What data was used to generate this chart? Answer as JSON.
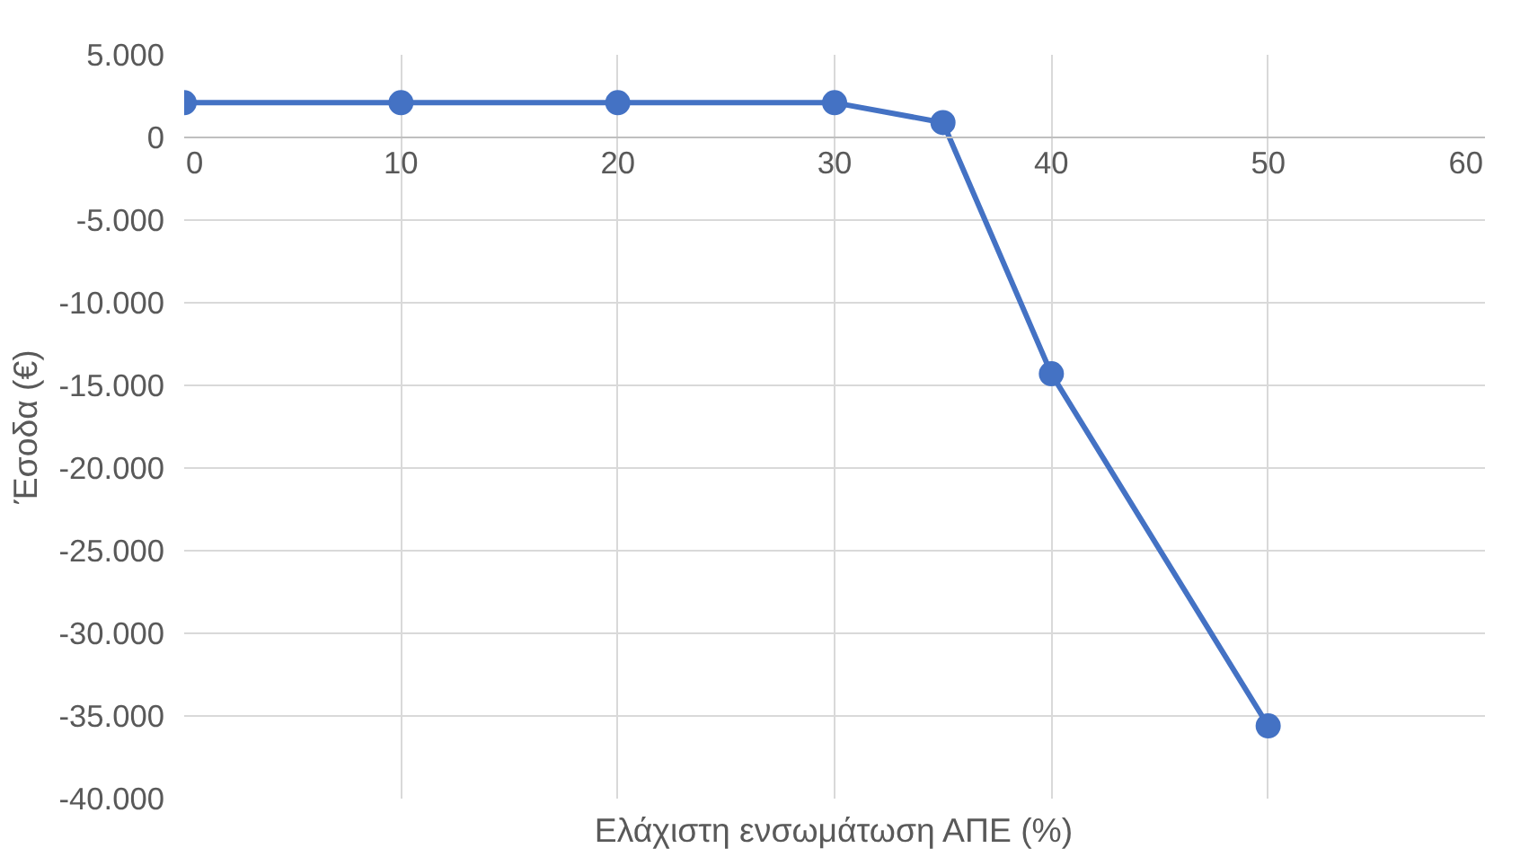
{
  "chart_data": {
    "type": "line",
    "xlabel": "Ελάχιστη ενσωμάτωση ΑΠΕ (%)",
    "ylabel": "Έσοδα (€)",
    "x": [
      0,
      10,
      20,
      30,
      35,
      40,
      50
    ],
    "series": [
      {
        "color": "#4472c4",
        "values": [
          2100,
          2100,
          2100,
          2100,
          900,
          -14300,
          -35600
        ]
      }
    ],
    "xlim": [
      0,
      60
    ],
    "xticks": [
      0,
      10,
      20,
      30,
      40,
      50,
      60
    ],
    "ylim": [
      -40000,
      5000
    ],
    "yticks": [
      {
        "value": 5000,
        "label": "5.000"
      },
      {
        "value": 0,
        "label": "0"
      },
      {
        "value": -5000,
        "label": "-5.000"
      },
      {
        "value": -10000,
        "label": "-10.000"
      },
      {
        "value": -15000,
        "label": "-15.000"
      },
      {
        "value": -20000,
        "label": "-20.000"
      },
      {
        "value": -25000,
        "label": "-25.000"
      },
      {
        "value": -30000,
        "label": "-30.000"
      },
      {
        "value": -35000,
        "label": "-35.000"
      },
      {
        "value": -40000,
        "label": "-40.000"
      }
    ],
    "grid": true,
    "marker": "circle",
    "line_style": "solid"
  }
}
